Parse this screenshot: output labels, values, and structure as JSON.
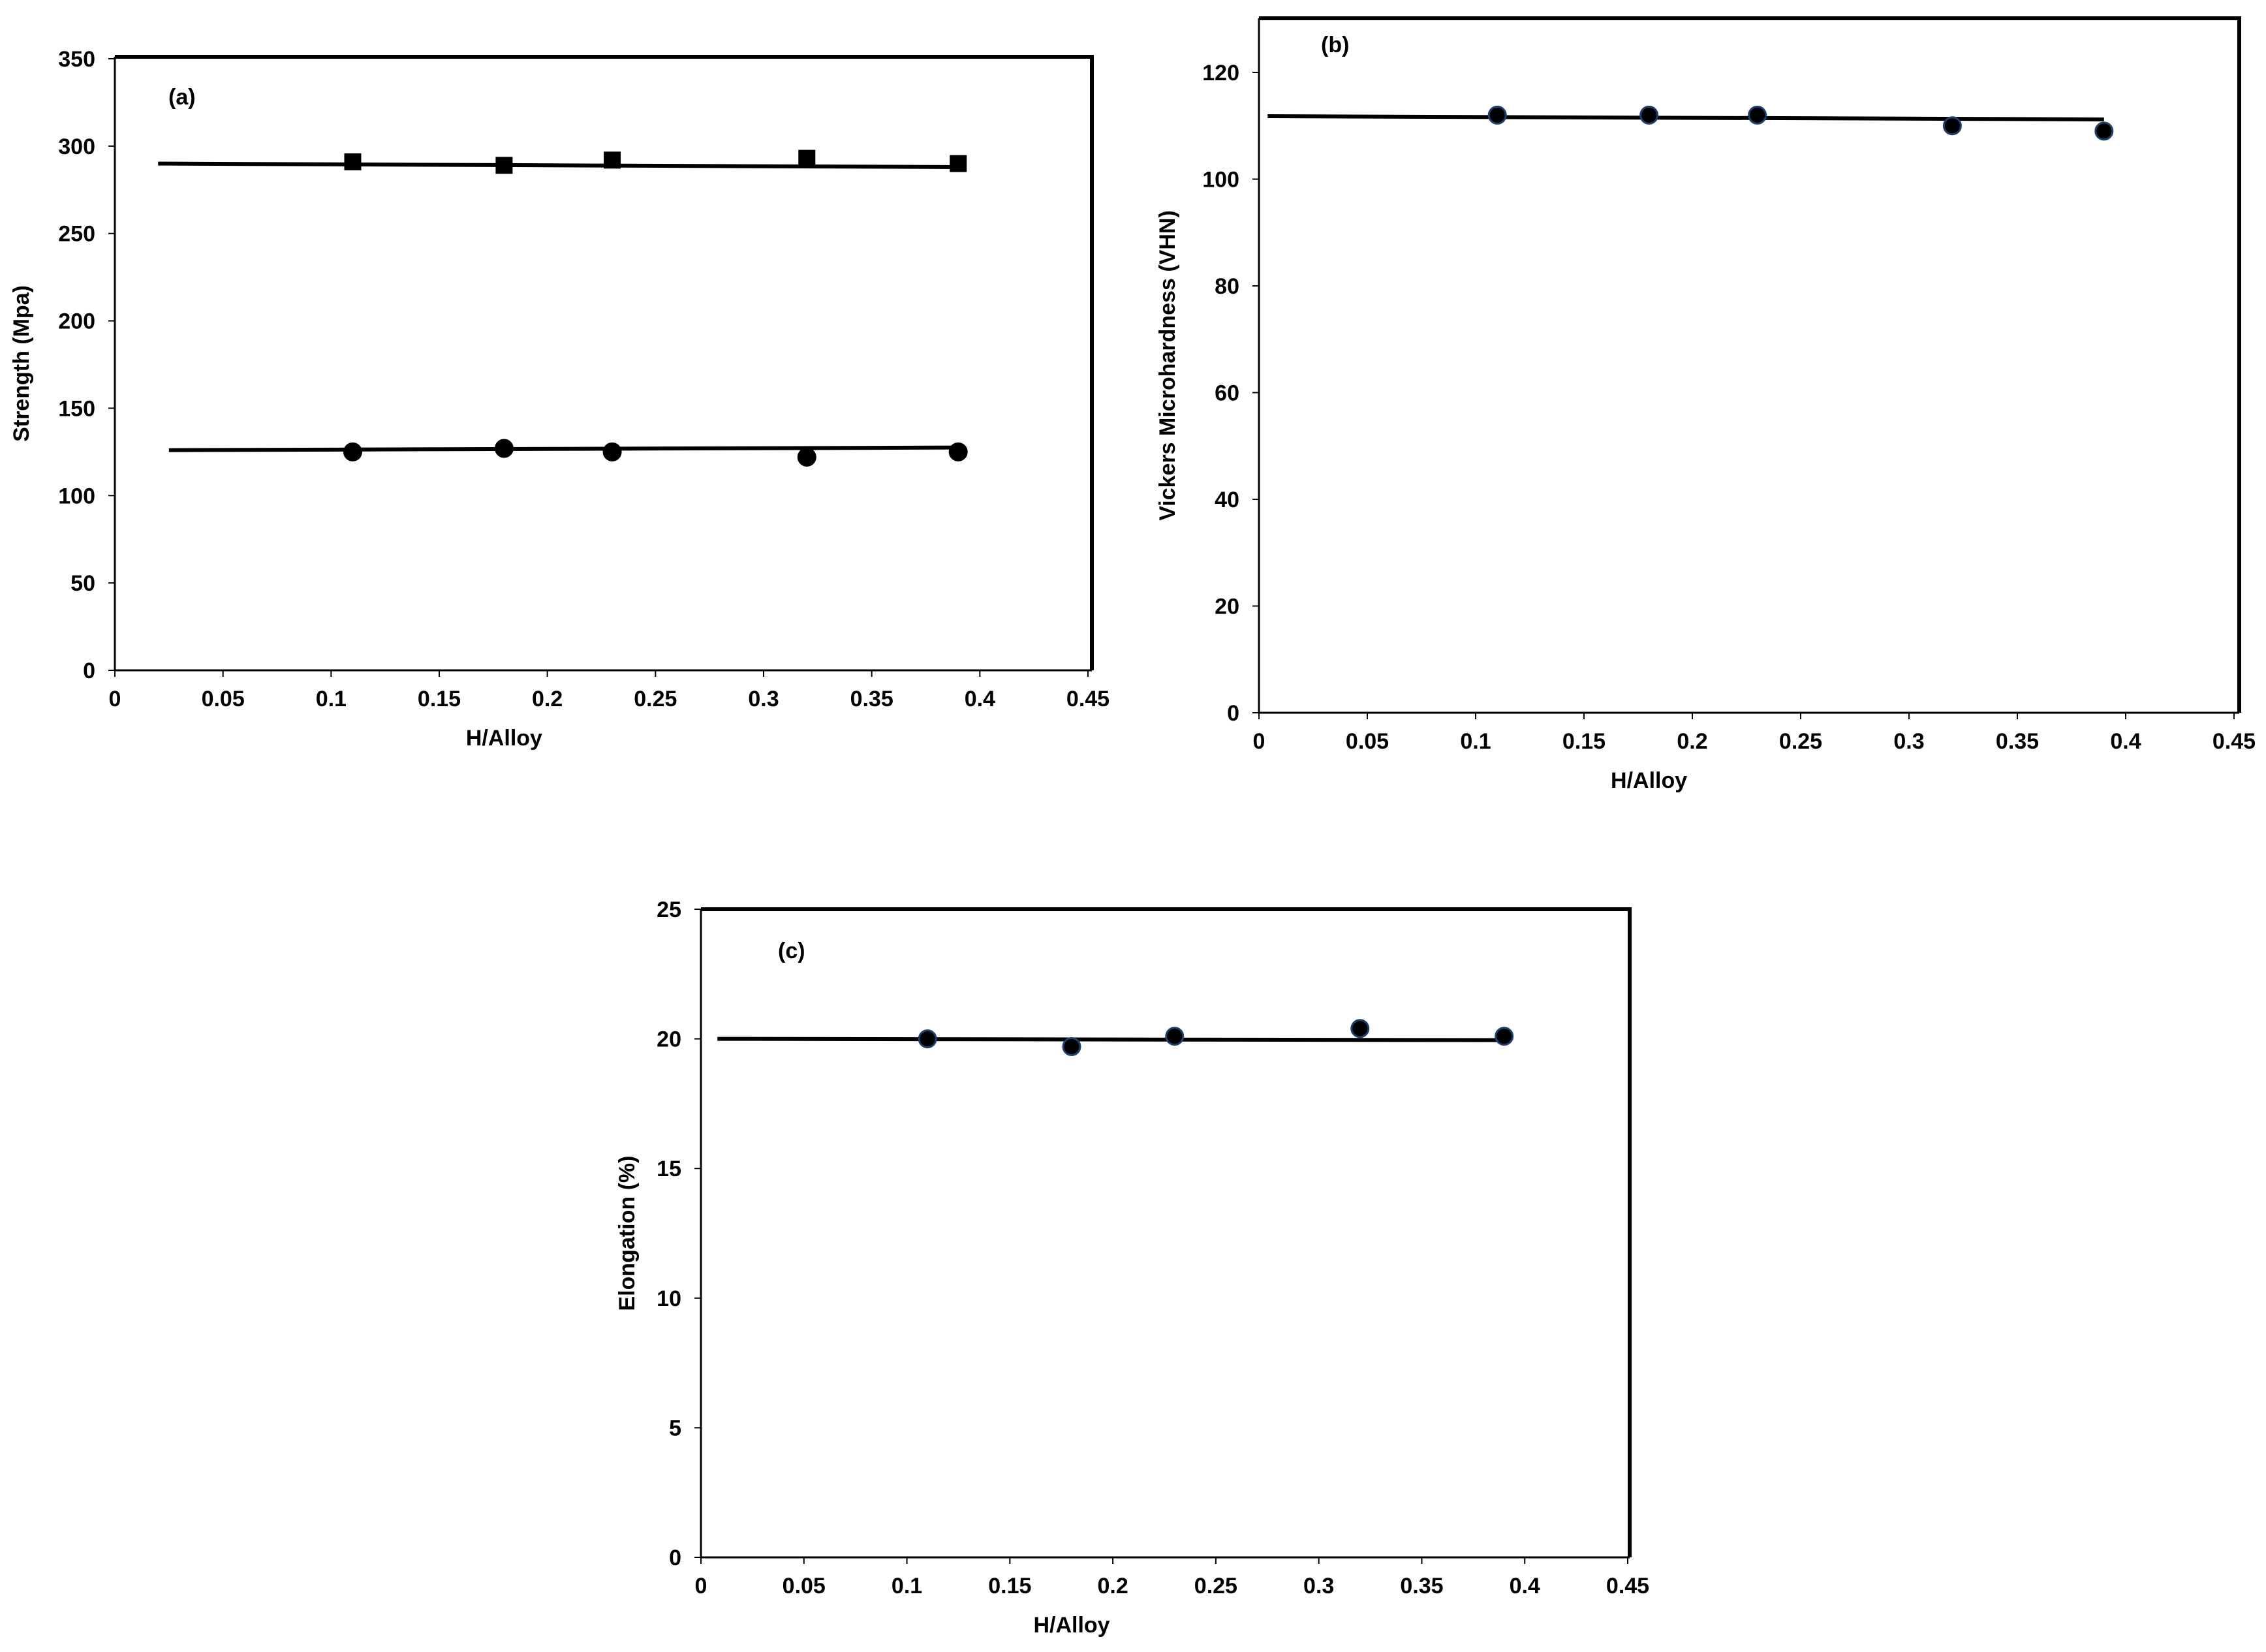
{
  "colors": {
    "axis": "#000000",
    "frame": "#000000",
    "marker": "#000000",
    "marker_edge_bc": "#1f3f6f",
    "fit_line": "#000000"
  },
  "chart_data": [
    {
      "type": "scatter",
      "panel_label": "(a)",
      "xlabel": "H/Alloy",
      "ylabel": "Strength (Mpa)",
      "xlim": [
        0,
        0.45
      ],
      "ylim": [
        0,
        350
      ],
      "xticks": [
        "0",
        "0.05",
        "0.1",
        "0.15",
        "0.2",
        "0.25",
        "0.3",
        "0.35",
        "0.4",
        "0.45"
      ],
      "yticks": [
        "0",
        "50",
        "100",
        "150",
        "200",
        "250",
        "300",
        "350"
      ],
      "grid": false,
      "series": [
        {
          "marker": "square",
          "x": [
            0.11,
            0.18,
            0.23,
            0.32,
            0.39
          ],
          "y": [
            291,
            289,
            292,
            293,
            290
          ],
          "fit": {
            "x": [
              0.02,
              0.39
            ],
            "y": [
              290,
              288
            ]
          }
        },
        {
          "marker": "circle",
          "x": [
            0.11,
            0.18,
            0.23,
            0.32,
            0.39
          ],
          "y": [
            125,
            127,
            125,
            122,
            125
          ],
          "fit": {
            "x": [
              0.025,
              0.39
            ],
            "y": [
              126,
              127.5
            ]
          }
        }
      ]
    },
    {
      "type": "scatter",
      "panel_label": "(b)",
      "xlabel": "H/Alloy",
      "ylabel": "Vickers Microhardness (VHN)",
      "xlim": [
        0,
        0.45
      ],
      "ylim": [
        0,
        120
      ],
      "xticks": [
        "0",
        "0.05",
        "0.1",
        "0.15",
        "0.2",
        "0.25",
        "0.3",
        "0.35",
        "0.4",
        "0.45"
      ],
      "yticks": [
        "0",
        "20",
        "40",
        "60",
        "80",
        "100",
        "120"
      ],
      "grid": false,
      "series": [
        {
          "marker": "circle",
          "x": [
            0.11,
            0.18,
            0.23,
            0.32,
            0.39
          ],
          "y": [
            112,
            112,
            112,
            110,
            109
          ],
          "fit": {
            "x": [
              0.004,
              0.39
            ],
            "y": [
              111.8,
              111.2
            ]
          }
        }
      ]
    },
    {
      "type": "scatter",
      "panel_label": "(c)",
      "xlabel": "H/Alloy",
      "ylabel": "Elongation (%)",
      "xlim": [
        0,
        0.45
      ],
      "ylim": [
        0,
        25
      ],
      "xticks": [
        "0",
        "0.05",
        "0.1",
        "0.15",
        "0.2",
        "0.25",
        "0.3",
        "0.35",
        "0.4",
        "0.45"
      ],
      "yticks": [
        "0",
        "5",
        "10",
        "15",
        "20",
        "25"
      ],
      "grid": false,
      "series": [
        {
          "marker": "circle",
          "x": [
            0.11,
            0.18,
            0.23,
            0.32,
            0.39
          ],
          "y": [
            20.0,
            19.7,
            20.1,
            20.4,
            20.1
          ],
          "fit": {
            "x": [
              0.008,
              0.39
            ],
            "y": [
              20.0,
              19.95
            ]
          }
        }
      ]
    }
  ]
}
